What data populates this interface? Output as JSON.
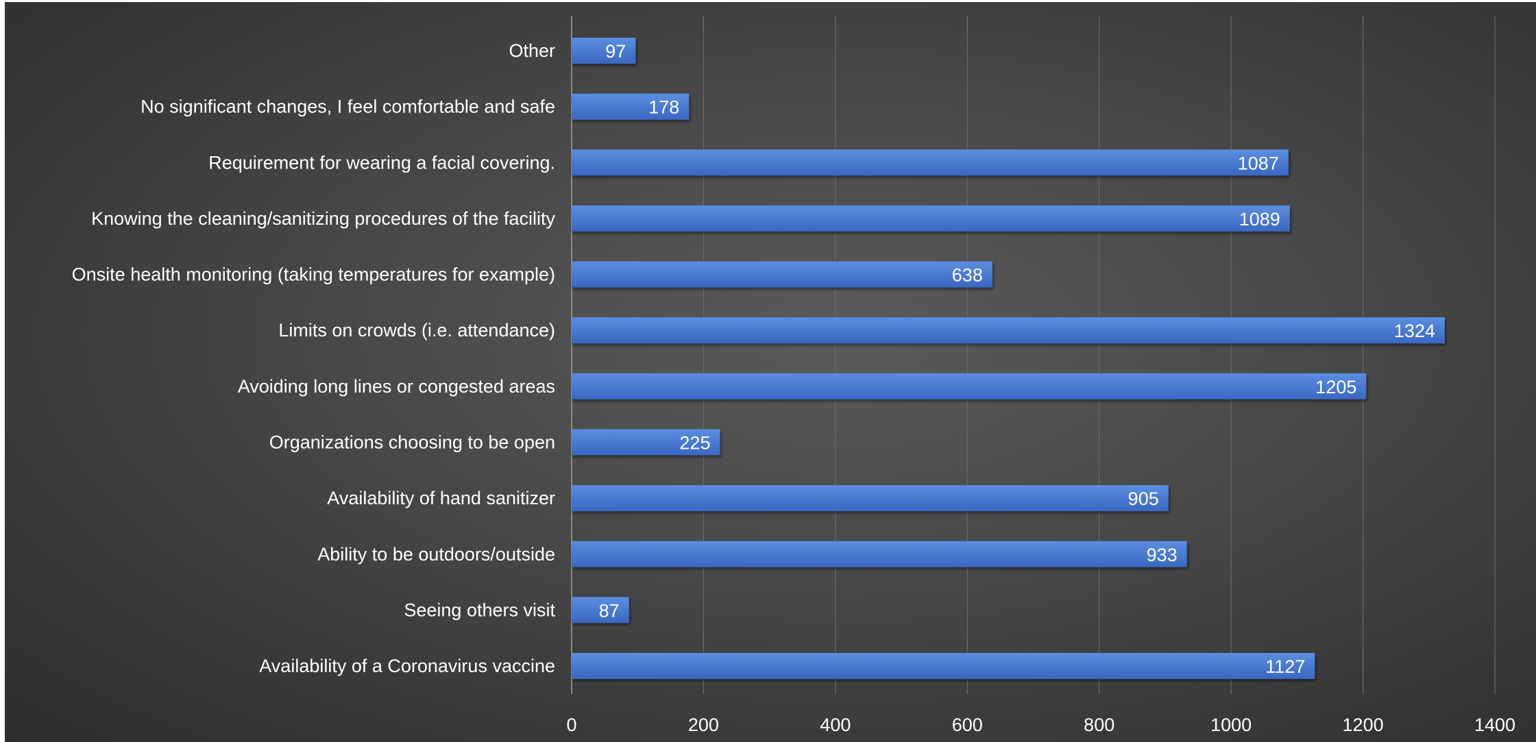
{
  "chart_data": {
    "type": "bar",
    "orientation": "horizontal",
    "title": "",
    "xlabel": "",
    "ylabel": "",
    "xlim": [
      0,
      1400
    ],
    "ticks": [
      0,
      200,
      400,
      600,
      800,
      1000,
      1200,
      1400
    ],
    "grid": true,
    "legend": "none",
    "categories": [
      "Other",
      "No significant changes, I feel comfortable and safe",
      "Requirement for wearing a facial covering.",
      "Knowing the cleaning/sanitizing procedures of the facility",
      "Onsite health monitoring (taking temperatures for example)",
      "Limits on crowds (i.e. attendance)",
      "Avoiding long lines or congested areas",
      "Organizations choosing to be open",
      "Availability of hand sanitizer",
      "Ability to be outdoors/outside",
      "Seeing others visit",
      "Availability of a Coronavirus vaccine"
    ],
    "values": [
      97,
      178,
      1087,
      1089,
      638,
      1324,
      1205,
      225,
      905,
      933,
      87,
      1127
    ],
    "colors": {
      "bar_top": "#5b8ee0",
      "bar_bottom": "#3a67c0",
      "grid": "#6a6a6a",
      "axis": "#a0a0a0",
      "text": "#ffffff"
    }
  }
}
